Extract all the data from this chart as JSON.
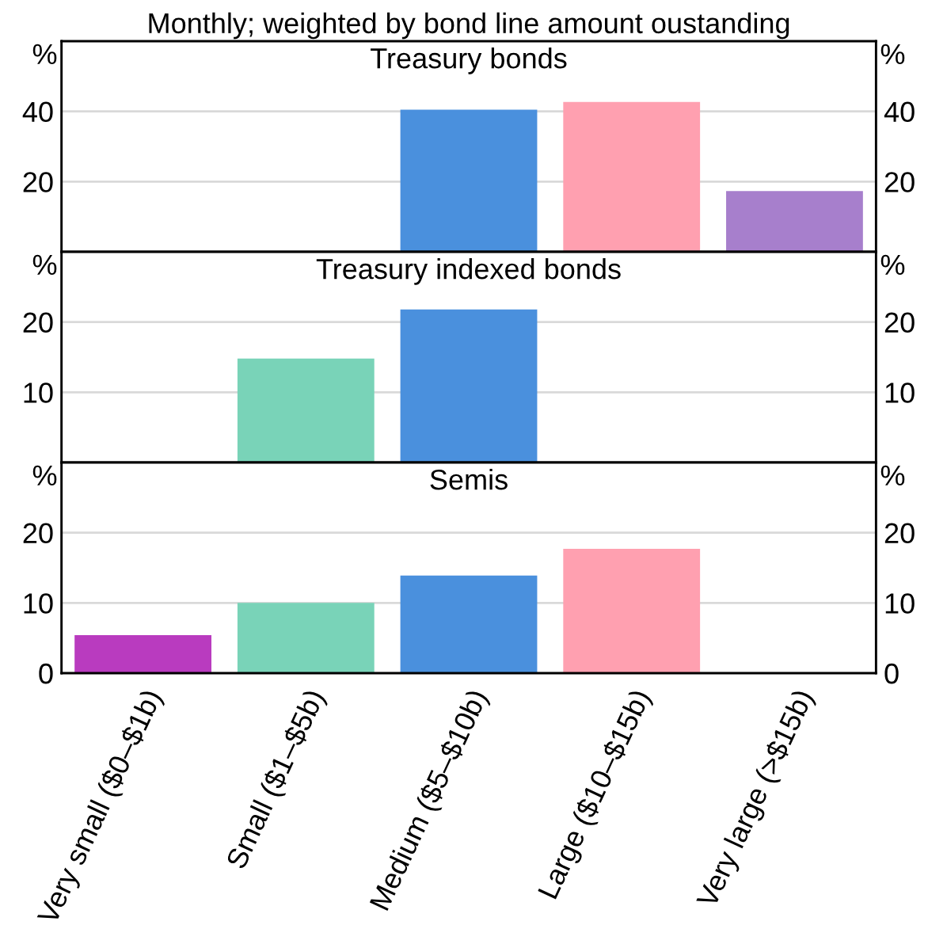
{
  "chart_data": [
    {
      "type": "bar",
      "subtitle": "Monthly; weighted by bond line amount oustanding",
      "title": "Treasury bonds",
      "categories": [
        null,
        null,
        null,
        null,
        null
      ],
      "values": [
        null,
        null,
        40.5,
        42.7,
        17.3
      ],
      "colors": [
        "#b93bbf",
        "#79d3b8",
        "#4a90dd",
        "#ffa0b0",
        "#a77fcc"
      ],
      "ylabel": "%",
      "y2label": "%",
      "ylim": [
        0,
        60
      ],
      "yticks": [
        20,
        40
      ],
      "y2lim": [
        0,
        60
      ],
      "y2ticks": [
        20,
        40
      ],
      "grid": "y"
    },
    {
      "type": "bar",
      "title": "Treasury indexed bonds",
      "categories": [
        null,
        null,
        null,
        null,
        null
      ],
      "values": [
        null,
        14.8,
        21.8,
        null,
        null
      ],
      "colors": [
        "#b93bbf",
        "#79d3b8",
        "#4a90dd",
        "#ffa0b0",
        "#a77fcc"
      ],
      "ylabel": "%",
      "y2label": "%",
      "ylim": [
        0,
        30
      ],
      "yticks": [
        10,
        20
      ],
      "y2lim": [
        0,
        30
      ],
      "y2ticks": [
        10,
        20
      ],
      "grid": "y"
    },
    {
      "type": "bar",
      "title": "Semis",
      "categories": [
        "Very small ($0–$1b)",
        "Small ($1–$5b)",
        "Medium ($5–$10b)",
        "Large ($10–$15b)",
        "Very large (>$15b)"
      ],
      "values": [
        5.4,
        10,
        13.9,
        17.7,
        null
      ],
      "colors": [
        "#b93bbf",
        "#79d3b8",
        "#4a90dd",
        "#ffa0b0",
        "#a77fcc"
      ],
      "ylabel": "%",
      "y2label": "%",
      "ylim": [
        0,
        30
      ],
      "yticks": [
        0,
        10,
        20
      ],
      "y2lim": [
        0,
        30
      ],
      "y2ticks": [
        0,
        10,
        20
      ],
      "grid": "y"
    }
  ]
}
